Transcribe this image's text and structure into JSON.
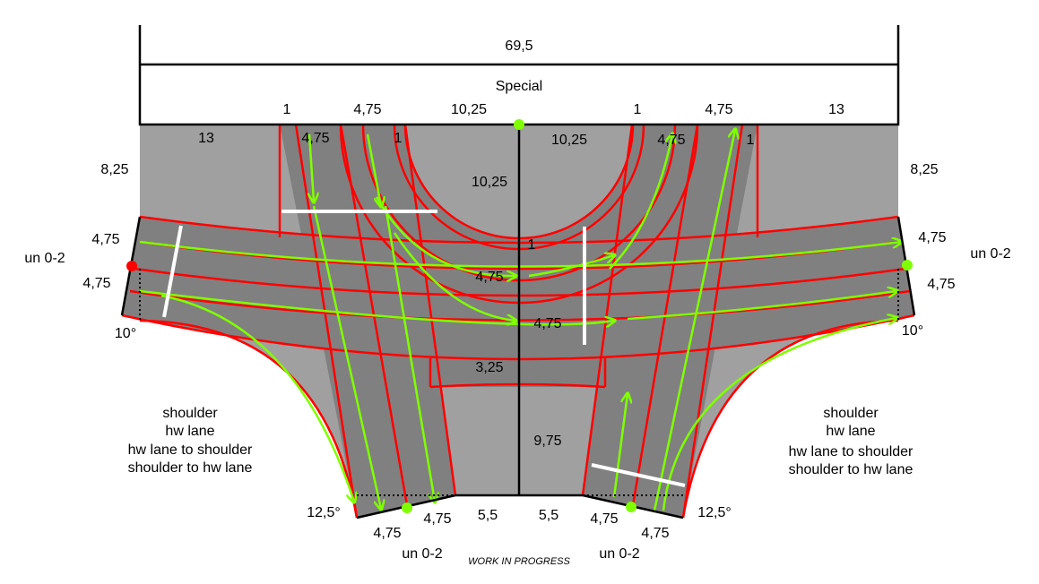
{
  "header": {
    "total_width": "69,5",
    "title": "Special"
  },
  "top_dimensions": [
    "1",
    "4,75",
    "10,25",
    "1",
    "4,75",
    "13"
  ],
  "inner_dimensions": [
    "13",
    "4,75",
    "1",
    "10,25",
    "4,75",
    "1",
    "10,25"
  ],
  "left_side": {
    "height": "8,25",
    "lanes": [
      "4,75",
      "4,75"
    ],
    "code": "un 0-2",
    "angle": "10°"
  },
  "right_side": {
    "height": "8,25",
    "lanes": [
      "4,75",
      "4,75"
    ],
    "code": "un 0-2",
    "angle": "10°"
  },
  "center_labels": [
    "1",
    "4,75",
    "4,75",
    "3,25",
    "9,75"
  ],
  "legend_left": [
    "shoulder",
    "hw lane",
    "hw lane to shoulder",
    "shoulder to hw lane"
  ],
  "legend_right": [
    "shoulder",
    "hw lane",
    "hw lane to shoulder",
    "shoulder to hw lane"
  ],
  "bottom_left": {
    "angle": "12,5°",
    "lanes": [
      "4,75",
      "4,75"
    ],
    "width": "5,5",
    "code": "un 0-2"
  },
  "bottom_right": {
    "angle": "12,5°",
    "lanes": [
      "4,75",
      "4,75"
    ],
    "width": "5,5",
    "code": "un 0-2"
  },
  "footer": "WORK IN PROGRESS"
}
